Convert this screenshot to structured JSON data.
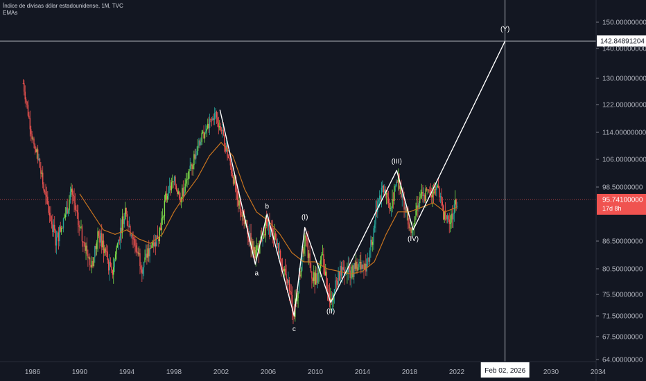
{
  "legend": {
    "symbol_line": "Índice de divisas dólar estadounidense, 1M, TVC",
    "indicator": "EMAs"
  },
  "chart_data": {
    "type": "candlestick",
    "x_ticks": [
      "1986",
      "1990",
      "1994",
      "1998",
      "2002",
      "2006",
      "2010",
      "2014",
      "2018",
      "2022",
      "2030",
      "2034"
    ],
    "y_ticks": [
      "150.00000000",
      "140.00000000",
      "130.00000000",
      "122.00000000",
      "114.00000000",
      "106.00000000",
      "98.50000000",
      "86.50000000",
      "80.50000000",
      "75.50000000",
      "71.50000000",
      "67.50000000",
      "64.00000000"
    ],
    "y_tick_values": [
      150,
      140,
      130,
      122,
      114,
      106,
      98.5,
      86.5,
      80.5,
      75.5,
      71.5,
      67.5,
      64
    ],
    "crosshair": {
      "date_label": "Feb 02, 2026",
      "price_label": "142.84891204",
      "date": 2026.1,
      "price": 142.85
    },
    "last_price": {
      "label": "95.74100000",
      "countdown": "17d 8h",
      "value": 95.741
    },
    "colors": {
      "up": "#26a69a",
      "up_bright": "#7ee04a",
      "down": "#ef5350",
      "ema": "#c8741f",
      "wave": "#ffffff",
      "background": "#131722",
      "last_price": "#f05350"
    },
    "price_path": [
      {
        "x": 1985.2,
        "y": 128.5
      },
      {
        "x": 1985.6,
        "y": 120
      },
      {
        "x": 1986.0,
        "y": 112
      },
      {
        "x": 1986.5,
        "y": 106
      },
      {
        "x": 1987.0,
        "y": 97
      },
      {
        "x": 1987.5,
        "y": 92
      },
      {
        "x": 1988.0,
        "y": 86.5
      },
      {
        "x": 1988.6,
        "y": 91
      },
      {
        "x": 1989.3,
        "y": 97
      },
      {
        "x": 1989.9,
        "y": 90
      },
      {
        "x": 1990.5,
        "y": 85
      },
      {
        "x": 1991.0,
        "y": 81
      },
      {
        "x": 1991.6,
        "y": 88
      },
      {
        "x": 1992.2,
        "y": 84
      },
      {
        "x": 1992.7,
        "y": 79
      },
      {
        "x": 1993.2,
        "y": 86
      },
      {
        "x": 1993.8,
        "y": 93
      },
      {
        "x": 1994.3,
        "y": 89
      },
      {
        "x": 1994.9,
        "y": 84
      },
      {
        "x": 1995.3,
        "y": 81
      },
      {
        "x": 1996.0,
        "y": 85
      },
      {
        "x": 1996.7,
        "y": 88
      },
      {
        "x": 1997.3,
        "y": 96
      },
      {
        "x": 1998.0,
        "y": 100
      },
      {
        "x": 1998.6,
        "y": 96
      },
      {
        "x": 1999.3,
        "y": 102
      },
      {
        "x": 2000.0,
        "y": 110
      },
      {
        "x": 2000.6,
        "y": 114
      },
      {
        "x": 2001.5,
        "y": 119
      },
      {
        "x": 2002.0,
        "y": 115
      },
      {
        "x": 2002.5,
        "y": 108
      },
      {
        "x": 2003.1,
        "y": 100
      },
      {
        "x": 2003.6,
        "y": 94
      },
      {
        "x": 2004.2,
        "y": 89
      },
      {
        "x": 2004.9,
        "y": 83
      },
      {
        "x": 2005.8,
        "y": 90
      },
      {
        "x": 2006.4,
        "y": 88
      },
      {
        "x": 2007.0,
        "y": 83
      },
      {
        "x": 2007.6,
        "y": 78
      },
      {
        "x": 2008.2,
        "y": 72
      },
      {
        "x": 2008.7,
        "y": 80
      },
      {
        "x": 2009.1,
        "y": 88
      },
      {
        "x": 2009.6,
        "y": 80
      },
      {
        "x": 2010.1,
        "y": 78
      },
      {
        "x": 2010.6,
        "y": 83
      },
      {
        "x": 2011.2,
        "y": 74
      },
      {
        "x": 2011.8,
        "y": 78
      },
      {
        "x": 2012.4,
        "y": 81
      },
      {
        "x": 2013.0,
        "y": 80
      },
      {
        "x": 2013.7,
        "y": 81
      },
      {
        "x": 2014.3,
        "y": 80.5
      },
      {
        "x": 2014.9,
        "y": 88
      },
      {
        "x": 2015.3,
        "y": 96
      },
      {
        "x": 2015.9,
        "y": 98
      },
      {
        "x": 2016.4,
        "y": 94
      },
      {
        "x": 2017.0,
        "y": 101
      },
      {
        "x": 2017.5,
        "y": 95
      },
      {
        "x": 2018.1,
        "y": 89
      },
      {
        "x": 2018.7,
        "y": 95
      },
      {
        "x": 2019.3,
        "y": 97
      },
      {
        "x": 2019.8,
        "y": 97
      },
      {
        "x": 2020.3,
        "y": 100
      },
      {
        "x": 2020.8,
        "y": 93
      },
      {
        "x": 2021.3,
        "y": 90
      },
      {
        "x": 2021.8,
        "y": 94
      },
      {
        "x": 2022.1,
        "y": 95.7
      }
    ],
    "ema_path": [
      {
        "x": 1990.0,
        "y": 97
      },
      {
        "x": 1991.0,
        "y": 93
      },
      {
        "x": 1992.0,
        "y": 89
      },
      {
        "x": 1993.0,
        "y": 88
      },
      {
        "x": 1994.0,
        "y": 89
      },
      {
        "x": 1995.0,
        "y": 87
      },
      {
        "x": 1996.0,
        "y": 86
      },
      {
        "x": 1997.0,
        "y": 88
      },
      {
        "x": 1998.0,
        "y": 93
      },
      {
        "x": 1999.0,
        "y": 97
      },
      {
        "x": 2000.0,
        "y": 101
      },
      {
        "x": 2001.0,
        "y": 107
      },
      {
        "x": 2002.0,
        "y": 111
      },
      {
        "x": 2003.0,
        "y": 107
      },
      {
        "x": 2004.0,
        "y": 98
      },
      {
        "x": 2005.0,
        "y": 93
      },
      {
        "x": 2006.0,
        "y": 91
      },
      {
        "x": 2007.0,
        "y": 88
      },
      {
        "x": 2008.0,
        "y": 84
      },
      {
        "x": 2009.0,
        "y": 82
      },
      {
        "x": 2010.0,
        "y": 82
      },
      {
        "x": 2011.0,
        "y": 80.5
      },
      {
        "x": 2012.0,
        "y": 80
      },
      {
        "x": 2013.0,
        "y": 79.5
      },
      {
        "x": 2014.0,
        "y": 80
      },
      {
        "x": 2015.0,
        "y": 82
      },
      {
        "x": 2016.0,
        "y": 88
      },
      {
        "x": 2017.0,
        "y": 93
      },
      {
        "x": 2018.0,
        "y": 93
      },
      {
        "x": 2019.0,
        "y": 94
      },
      {
        "x": 2020.0,
        "y": 95
      },
      {
        "x": 2021.0,
        "y": 93
      },
      {
        "x": 2022.0,
        "y": 94
      }
    ],
    "wave_points": [
      {
        "x": 2001.9,
        "y": 120.5,
        "label": ""
      },
      {
        "x": 2004.9,
        "y": 81.5,
        "label": "a"
      },
      {
        "x": 2005.9,
        "y": 92.5,
        "label": "b"
      },
      {
        "x": 2008.2,
        "y": 71.5,
        "label": "c"
      },
      {
        "x": 2009.1,
        "y": 89.5,
        "label": "(I)"
      },
      {
        "x": 2011.3,
        "y": 74.0,
        "label": "(II)"
      },
      {
        "x": 2016.9,
        "y": 103.0,
        "label": "(III)"
      },
      {
        "x": 2018.3,
        "y": 89.0,
        "label": "(IV)"
      },
      {
        "x": 2026.1,
        "y": 142.85,
        "label": "(Y)"
      }
    ]
  }
}
